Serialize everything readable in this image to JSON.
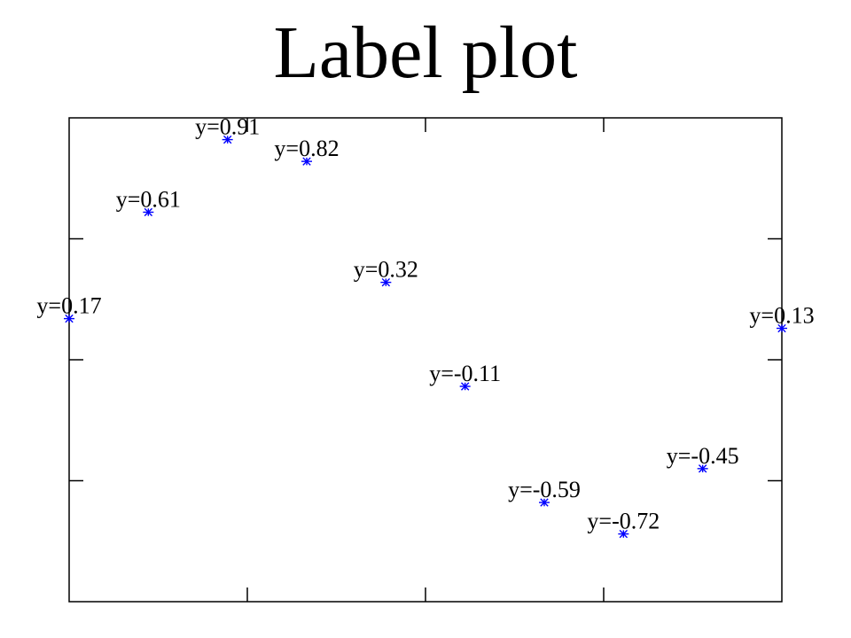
{
  "chart_data": {
    "type": "scatter",
    "title": "Label plot",
    "xlabel": "",
    "ylabel": "",
    "xlim": [
      0,
      9
    ],
    "ylim": [
      -1,
      1
    ],
    "grid": false,
    "marker": "asterisk",
    "marker_color": "#0000ff",
    "x_ticks": [
      0,
      2.25,
      4.5,
      6.75,
      9
    ],
    "y_ticks": [
      -1,
      -0.5,
      0,
      0.5,
      1
    ],
    "points": [
      {
        "x": 0,
        "y": 0.17,
        "label": "y=0.17"
      },
      {
        "x": 1,
        "y": 0.61,
        "label": "y=0.61"
      },
      {
        "x": 2,
        "y": 0.91,
        "label": "y=0.91"
      },
      {
        "x": 3,
        "y": 0.82,
        "label": "y=0.82"
      },
      {
        "x": 4,
        "y": 0.32,
        "label": "y=0.32"
      },
      {
        "x": 5,
        "y": -0.11,
        "label": "y=-0.11"
      },
      {
        "x": 6,
        "y": -0.59,
        "label": "y=-0.59"
      },
      {
        "x": 7,
        "y": -0.72,
        "label": "y=-0.72"
      },
      {
        "x": 8,
        "y": -0.45,
        "label": "y=-0.45"
      },
      {
        "x": 9,
        "y": 0.13,
        "label": "y=0.13"
      }
    ]
  }
}
